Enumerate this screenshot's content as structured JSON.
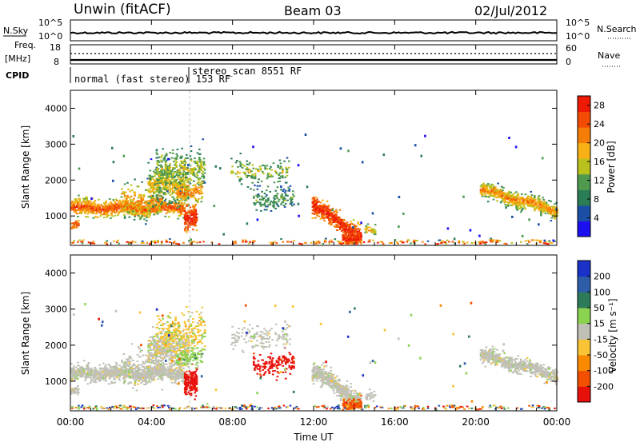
{
  "header": {
    "title": "Unwin (fitACF)",
    "beam": "Beam 03",
    "date": "02/Jul/2012"
  },
  "top_panels": {
    "nsky_label": "N.Sky",
    "nsearch_label": "N.Search",
    "nsky_ticks": [
      "10^5",
      "10^0"
    ],
    "nsearch_ticks": [
      "10^5",
      "10^0"
    ],
    "freq_label_1": "Freq.",
    "freq_label_2": "[MHz]",
    "freq_ticks": [
      "18",
      "8"
    ],
    "nave_label": "Nave",
    "nave_ticks": [
      "60",
      "0"
    ],
    "cpid_label": "CPID",
    "cpid_segment_1": "normal (fast stereo) 153 RF",
    "cpid_segment_2": "stereo_scan 8551 RF"
  },
  "colors": {
    "power": [
      "#1c10f2",
      "#1b4fa6",
      "#2a7e56",
      "#4f9a4f",
      "#b9c21c",
      "#f7b114",
      "#f47e08",
      "#f24b04",
      "#ee1a06"
    ],
    "velocity": [
      "#e8100b",
      "#f24f00",
      "#f98a00",
      "#f8c334",
      "#c0c0b6",
      "#8bd34f",
      "#2e7b5b",
      "#2d5da9",
      "#1a32c8"
    ]
  },
  "chart_data": [
    {
      "type": "heatmap",
      "title": "Power",
      "ylabel": "Slant Range [km]",
      "xlabel": "Time UT",
      "x_ticks": [
        "00:00",
        "04:00",
        "08:00",
        "12:00",
        "16:00",
        "20:00",
        "00:00"
      ],
      "y_ticks": [
        "1000",
        "2000",
        "3000",
        "4000"
      ],
      "ylim": [
        180,
        4500
      ],
      "colorbar": {
        "label": "Power [dB]",
        "ticks": [
          "4",
          "8",
          "12",
          "16",
          "20",
          "24",
          "28"
        ],
        "range": [
          0,
          30
        ]
      },
      "features": [
        {
          "time_hours": [
            0.0,
            5.5
          ],
          "range_km": [
            900,
            1500
          ],
          "description": "dense band near 1200 km"
        },
        {
          "time_hours": [
            3.8,
            6.5
          ],
          "range_km": [
            1300,
            2600
          ]
        },
        {
          "time_hours": [
            11.9,
            14.2
          ],
          "range_km": [
            300,
            1500
          ],
          "max_power_db": 28
        },
        {
          "time_hours": [
            20.2,
            24.0
          ],
          "range_km": [
            1000,
            2000
          ]
        }
      ]
    },
    {
      "type": "heatmap",
      "title": "Velocity",
      "ylabel": "Slant Range [km]",
      "xlabel": "Time UT",
      "x_ticks": [
        "00:00",
        "04:00",
        "08:00",
        "12:00",
        "16:00",
        "20:00",
        "00:00"
      ],
      "y_ticks": [
        "1000",
        "2000",
        "3000",
        "4000"
      ],
      "ylim": [
        180,
        4500
      ],
      "colorbar": {
        "label": "Velocity [m s⁻¹]",
        "ticks": [
          "-200",
          "-100",
          "-50",
          "-15",
          "15",
          "50",
          "100",
          "200"
        ],
        "range": [
          -250,
          250
        ]
      },
      "features": [
        {
          "time_hours": [
            0.0,
            5.5
          ],
          "range_km": [
            900,
            1500
          ],
          "velocity": "-15 to 15"
        },
        {
          "time_hours": [
            5.6,
            6.2
          ],
          "range_km": [
            700,
            1300
          ],
          "velocity": "-200"
        },
        {
          "time_hours": [
            12.0,
            14.2
          ],
          "range_km": [
            300,
            1500
          ],
          "velocity": "-15 to 15"
        },
        {
          "time_hours": [
            20.2,
            24.0
          ],
          "range_km": [
            1000,
            2000
          ],
          "velocity": "-15 to 15"
        }
      ]
    }
  ],
  "x_axis_label": "Time UT"
}
